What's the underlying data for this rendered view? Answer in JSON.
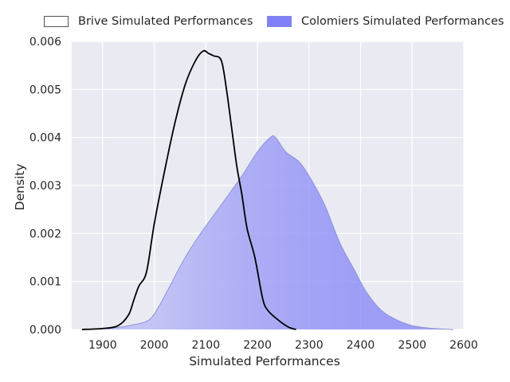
{
  "chart_data": {
    "type": "area",
    "title": "",
    "xlabel": "Simulated Performances",
    "ylabel": "Density",
    "xlim": [
      1840,
      2600
    ],
    "ylim": [
      0,
      0.006
    ],
    "xticks": [
      "1900",
      "2000",
      "2100",
      "2200",
      "2300",
      "2400",
      "2500",
      "2600"
    ],
    "yticks": [
      "0.000",
      "0.001",
      "0.002",
      "0.003",
      "0.004",
      "0.005",
      "0.006"
    ],
    "grid": true,
    "background_color": "#eaeaf2",
    "legend_position": "top",
    "series": [
      {
        "name": "Brive Simulated Performances",
        "style": "line",
        "color": "#000000",
        "points": [
          [
            1860,
            0.0
          ],
          [
            1900,
            2e-05
          ],
          [
            1930,
            8e-05
          ],
          [
            1950,
            0.0003
          ],
          [
            1960,
            0.0006
          ],
          [
            1970,
            0.0009
          ],
          [
            1985,
            0.0012
          ],
          [
            2000,
            0.0022
          ],
          [
            2020,
            0.0033
          ],
          [
            2040,
            0.0043
          ],
          [
            2060,
            0.0051
          ],
          [
            2080,
            0.0056
          ],
          [
            2095,
            0.0058
          ],
          [
            2105,
            0.00575
          ],
          [
            2115,
            0.0057
          ],
          [
            2130,
            0.0056
          ],
          [
            2140,
            0.005
          ],
          [
            2150,
            0.0042
          ],
          [
            2160,
            0.0034
          ],
          [
            2170,
            0.0028
          ],
          [
            2180,
            0.0021
          ],
          [
            2195,
            0.0015
          ],
          [
            2210,
            0.00065
          ],
          [
            2220,
            0.0004
          ],
          [
            2240,
            0.0002
          ],
          [
            2260,
            5e-05
          ],
          [
            2275,
            0.0
          ]
        ]
      },
      {
        "name": "Colomiers Simulated Performances",
        "style": "filled_area",
        "color": "#8080f8",
        "points": [
          [
            1860,
            0.0
          ],
          [
            1920,
            3e-05
          ],
          [
            1960,
            0.0001
          ],
          [
            1990,
            0.0002
          ],
          [
            2010,
            0.0005
          ],
          [
            2030,
            0.0009
          ],
          [
            2060,
            0.0015
          ],
          [
            2090,
            0.002
          ],
          [
            2130,
            0.0026
          ],
          [
            2170,
            0.0032
          ],
          [
            2200,
            0.0037
          ],
          [
            2225,
            0.004
          ],
          [
            2235,
            0.004
          ],
          [
            2255,
            0.0037
          ],
          [
            2280,
            0.0035
          ],
          [
            2300,
            0.0032
          ],
          [
            2330,
            0.0026
          ],
          [
            2360,
            0.0018
          ],
          [
            2390,
            0.0012
          ],
          [
            2410,
            0.0008
          ],
          [
            2440,
            0.0004
          ],
          [
            2470,
            0.0002
          ],
          [
            2500,
            8e-05
          ],
          [
            2540,
            2e-05
          ],
          [
            2580,
            0.0
          ]
        ]
      }
    ]
  }
}
